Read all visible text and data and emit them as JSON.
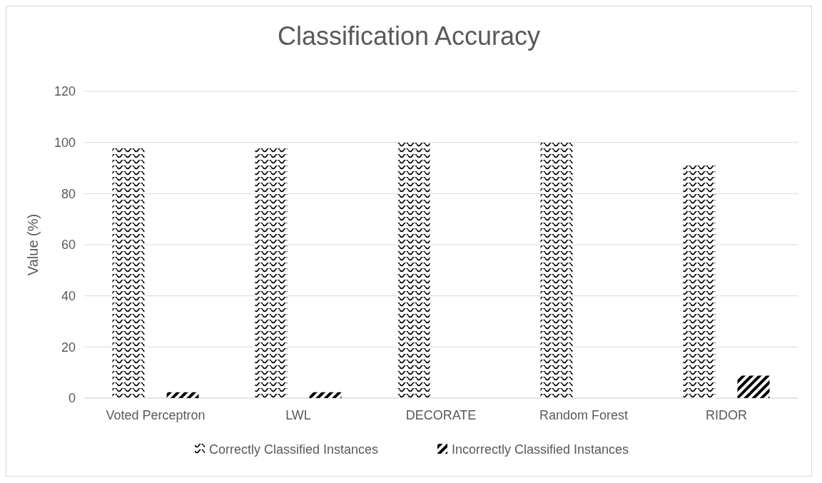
{
  "chart_data": {
    "type": "bar",
    "title": "Classification Accuracy",
    "ylabel": "Value (%)",
    "categories": [
      "Voted Perceptron",
      "LWL",
      "DECORATE",
      "Random Forest",
      "RIDOR"
    ],
    "series": [
      {
        "name": "Correctly Classified Instances",
        "color": "#000000",
        "values": [
          97.7,
          97.7,
          100,
          100,
          91.2
        ]
      },
      {
        "name": "Incorrectly Classified Instances",
        "color": "#000000",
        "values": [
          2.3,
          2.3,
          0,
          0,
          8.8
        ]
      }
    ],
    "ylim": [
      0,
      120
    ],
    "yticks": [
      0,
      20,
      40,
      60,
      80,
      100,
      120
    ],
    "grid": "y",
    "legend": "bottom"
  }
}
